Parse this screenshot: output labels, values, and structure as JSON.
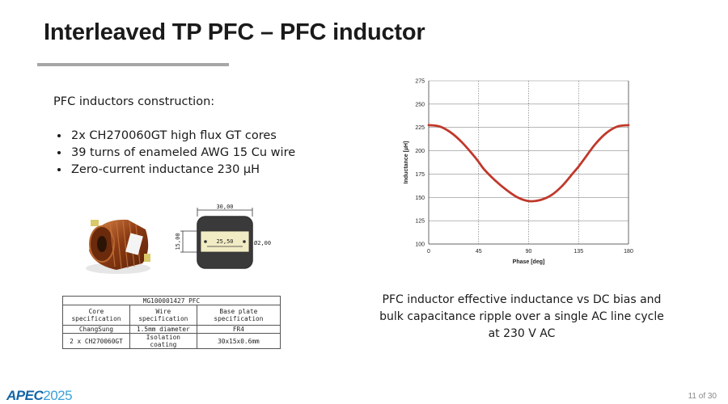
{
  "slide": {
    "title": "Interleaved TP PFC – PFC inductor",
    "page": "11 of 30"
  },
  "construction": {
    "heading": "PFC inductors construction:",
    "bullets": [
      "2x CH270060GT high flux GT cores",
      "39 turns of enameled AWG 15 Cu wire",
      "Zero-current inductance 230 µH"
    ]
  },
  "drawing": {
    "width_dim": "30,00",
    "height_dim": "15,00",
    "inner_dim": "25,50",
    "hole_dim": "Ø2,00"
  },
  "spec_table": {
    "title": "MG100001427 PFC",
    "headers": [
      "Core specification",
      "Wire specification",
      "Base plate specification"
    ],
    "rows": [
      [
        "ChangSung",
        "1.5mm diameter",
        "FR4"
      ],
      [
        "2 x CH270060GT",
        "Isolation coating",
        "30x15x0.6mm"
      ]
    ]
  },
  "chart_data": {
    "type": "line",
    "xlabel": "Phase [deg]",
    "ylabel": "Inductance [µH]",
    "xlim": [
      0,
      180
    ],
    "ylim": [
      100,
      275
    ],
    "xticks": [
      0,
      45,
      90,
      135,
      180
    ],
    "yticks": [
      100,
      125,
      150,
      175,
      200,
      225,
      250,
      275
    ],
    "grid": "x dotted, y solid",
    "series": [
      {
        "color": "#c0392b",
        "x": [
          0,
          10,
          20,
          30,
          40,
          45,
          50,
          60,
          70,
          80,
          90,
          100,
          110,
          120,
          130,
          135,
          140,
          150,
          160,
          170,
          180
        ],
        "y": [
          227.5,
          226,
          219.5,
          209,
          195.5,
          188,
          180,
          168,
          158,
          150,
          146,
          147,
          152,
          162,
          176,
          183,
          191,
          207,
          219,
          226,
          227.5
        ]
      }
    ]
  },
  "caption": {
    "lines": [
      "PFC inductor effective inductance vs DC bias and",
      "bulk capacitance ripple over a single AC line cycle",
      "at 230 V AC"
    ]
  },
  "logo": {
    "part1": "APEC",
    "part2": "2025"
  }
}
